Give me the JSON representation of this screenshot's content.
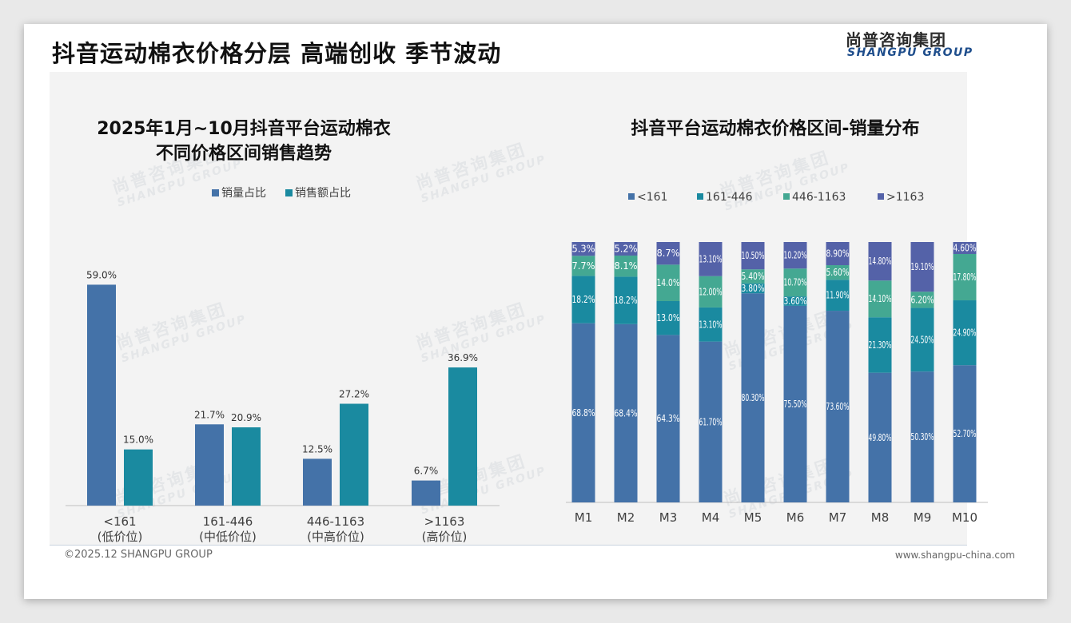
{
  "header": {
    "title": "抖音运动棉衣价格分层 高端创收 季节波动",
    "logo_cn": "尚普咨询集团",
    "logo_en": "SHANGPU GROUP"
  },
  "footer": {
    "copyright": "©2025.12 SHANGPU GROUP",
    "website": "www.shangpu-china.com"
  },
  "watermark": {
    "cn": "尚普咨询集团",
    "en": "SHANGPU GROUP"
  },
  "colors": {
    "blue": "#4472a8",
    "teal": "#1a8aa0",
    "green": "#44a892",
    "purple": "#5462a8",
    "axis": "#bfbfbf",
    "text": "#404040"
  },
  "chart_data": [
    {
      "type": "bar",
      "title_line1": "2025年1月~10月抖音平台运动棉衣",
      "title_line2": "不同价格区间销售趋势",
      "categories": [
        "<161",
        "161-446",
        "446-1163",
        ">1163"
      ],
      "category_sublabels": [
        "(低价位)",
        "(中低价位)",
        "(中高价位)",
        "(高价位)"
      ],
      "series": [
        {
          "name": "销量占比",
          "values": [
            59.0,
            21.7,
            12.5,
            6.7
          ],
          "labels": [
            "59.0%",
            "21.7%",
            "12.5%",
            "6.7%"
          ]
        },
        {
          "name": "销售额占比",
          "values": [
            15.0,
            20.9,
            27.2,
            36.9
          ],
          "labels": [
            "15.0%",
            "20.9%",
            "27.2%",
            "36.9%"
          ]
        }
      ],
      "ylim": [
        0,
        64
      ],
      "legend": "top-center",
      "grid": false
    },
    {
      "type": "bar",
      "stacked": true,
      "title": "抖音平台运动棉衣价格区间-销量分布",
      "categories": [
        "M1",
        "M2",
        "M3",
        "M4",
        "M5",
        "M6",
        "M7",
        "M8",
        "M9",
        "M10"
      ],
      "series": [
        {
          "name": "<161",
          "values": [
            68.8,
            68.4,
            64.3,
            61.7,
            80.3,
            75.5,
            73.6,
            49.8,
            50.3,
            52.7
          ],
          "labels": [
            "68.8%",
            "68.4%",
            "64.3%",
            "61.70%",
            "80.30%",
            "75.50%",
            "73.60%",
            "49.80%",
            "50.30%",
            "52.70%"
          ]
        },
        {
          "name": "161-446",
          "values": [
            18.2,
            18.2,
            13.0,
            13.1,
            3.8,
            3.6,
            11.9,
            21.3,
            24.5,
            24.9
          ],
          "labels": [
            "18.2%",
            "18.2%",
            "13.0%",
            "13.10%",
            "3.80%",
            "3.60%",
            "11.90%",
            "21.30%",
            "24.50%",
            "24.90%"
          ]
        },
        {
          "name": "446-1163",
          "values": [
            7.7,
            8.1,
            14.0,
            12.0,
            5.4,
            10.7,
            5.6,
            14.1,
            6.2,
            17.8
          ],
          "labels": [
            "7.7%",
            "8.1%",
            "14.0%",
            "12.00%",
            "5.40%",
            "10.70%",
            "5.60%",
            "14.10%",
            "6.20%",
            "17.80%"
          ]
        },
        {
          "name": ">1163",
          "values": [
            5.3,
            5.2,
            8.7,
            13.1,
            10.5,
            10.2,
            8.9,
            14.8,
            19.1,
            4.6
          ],
          "labels": [
            "5.3%",
            "5.2%",
            "8.7%",
            "13.10%",
            "10.50%",
            "10.20%",
            "8.90%",
            "14.80%",
            "19.10%",
            "4.60%"
          ]
        }
      ],
      "ylim": [
        0,
        100
      ],
      "legend": "top-center",
      "grid": false
    }
  ]
}
